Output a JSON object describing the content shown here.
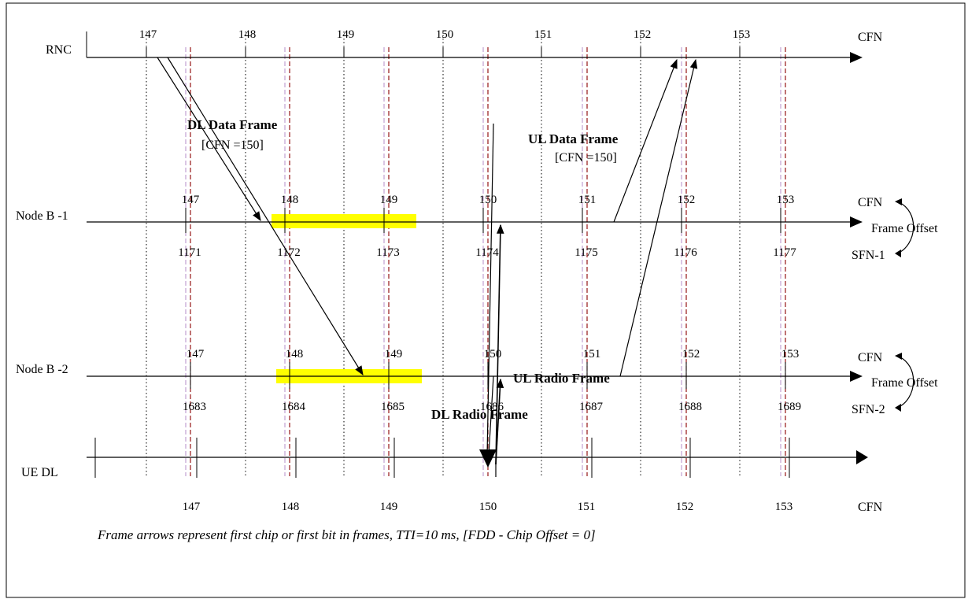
{
  "rows": {
    "rnc": "RNC",
    "nodeb1": "Node B -1",
    "nodeb2": "Node B -2",
    "ue": "UE DL"
  },
  "cfn_numbers": [
    "147",
    "148",
    "149",
    "150",
    "151",
    "152",
    "153"
  ],
  "sfn1_numbers": [
    "1171",
    "1172",
    "1173",
    "1174",
    "1175",
    "1176",
    "1177"
  ],
  "sfn2_numbers": [
    "1683",
    "1684",
    "1685",
    "1686",
    "1687",
    "1688",
    "1689"
  ],
  "right_labels": {
    "rnc_cfn": "CFN",
    "nb1_cfn": "CFN",
    "nb1_offset": "Frame Offset",
    "nb1_sfn": "SFN-1",
    "nb2_cfn": "CFN",
    "nb2_offset": "Frame Offset",
    "nb2_sfn": "SFN-2",
    "ue_cfn": "CFN"
  },
  "annotations": {
    "dl_data_frame": "DL Data Frame",
    "dl_cfn": "[CFN =150]",
    "ul_data_frame": "UL Data Frame",
    "ul_cfn": "[CFN =150]",
    "ul_radio_frame": "UL Radio Frame",
    "dl_radio_frame": "DL Radio Frame"
  },
  "caption": "Frame arrows represent first chip or first bit in frames, TTI=10 ms, [FDD - Chip Offset = 0]",
  "colors": {
    "highlight": "#ffff00",
    "red_dash": "#8b0000",
    "violet_dash": "#b48cc8",
    "line": "#000000"
  }
}
